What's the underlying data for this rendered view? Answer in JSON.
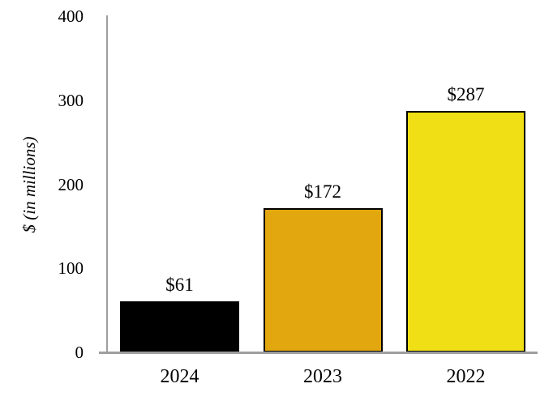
{
  "chart_data": {
    "type": "bar",
    "categories": [
      "2024",
      "2023",
      "2022"
    ],
    "values": [
      61,
      172,
      287
    ],
    "value_labels": [
      "$61",
      "$172",
      "$287"
    ],
    "bar_colors": [
      "#000000",
      "#e2a70e",
      "#efdf14"
    ],
    "bar_border_color": "#000000",
    "title": "",
    "xlabel": "",
    "ylabel": "$ (in millions)",
    "yticks": [
      0,
      100,
      200,
      300,
      400
    ],
    "ylim": [
      0,
      400
    ],
    "axis_color": "#9e9e9e",
    "text_color": "#000000",
    "background_color": "#ffffff",
    "grid": false,
    "legend": false
  }
}
